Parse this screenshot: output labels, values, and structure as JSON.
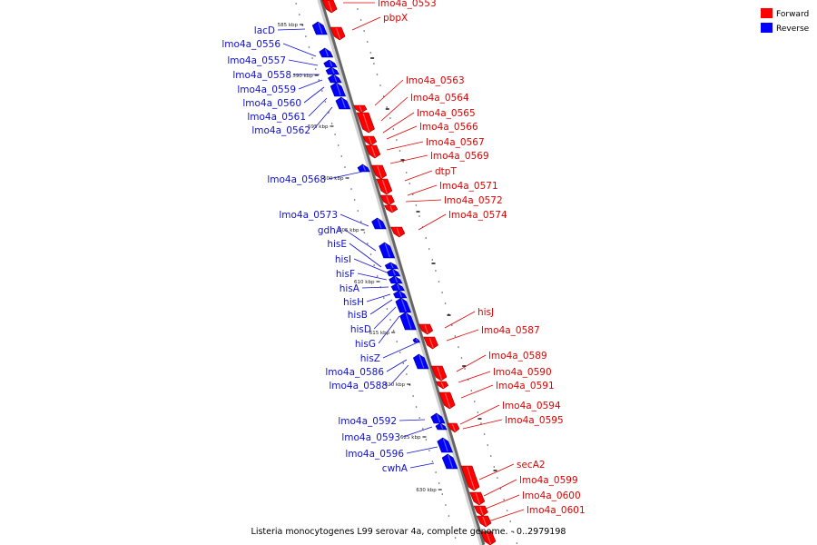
{
  "caption": "Listeria monocytogenes L99 serovar 4a, complete genome. - 0..2979198",
  "legend": [
    {
      "label": "Forward",
      "color": "#ff0000"
    },
    {
      "label": "Reverse",
      "color": "#0000ff"
    }
  ],
  "colors": {
    "forward": "#ff0000",
    "reverse": "#0000ff",
    "forward_label": "#e00000",
    "reverse_label": "#1010d0",
    "backbone": "#999999"
  },
  "ticks": [
    {
      "label": "585 kbp"
    },
    {
      "label": "590 kbp"
    },
    {
      "label": "595 kbp"
    },
    {
      "label": "600 kbp"
    },
    {
      "label": "605 kbp"
    },
    {
      "label": "610 kbp"
    },
    {
      "label": "615 kbp"
    },
    {
      "label": "620 kbp"
    },
    {
      "label": "625 kbp"
    },
    {
      "label": "630 kbp"
    }
  ],
  "forward_genes": [
    {
      "name": "lmo4a_0553"
    },
    {
      "name": "pbpX"
    },
    {
      "name": "lmo4a_0563"
    },
    {
      "name": "lmo4a_0564"
    },
    {
      "name": "lmo4a_0565"
    },
    {
      "name": "lmo4a_0566"
    },
    {
      "name": "lmo4a_0567"
    },
    {
      "name": "lmo4a_0569"
    },
    {
      "name": "dtpT"
    },
    {
      "name": "lmo4a_0571"
    },
    {
      "name": "lmo4a_0572"
    },
    {
      "name": "lmo4a_0574"
    },
    {
      "name": "hisJ"
    },
    {
      "name": "lmo4a_0587"
    },
    {
      "name": "lmo4a_0589"
    },
    {
      "name": "lmo4a_0590"
    },
    {
      "name": "lmo4a_0591"
    },
    {
      "name": "lmo4a_0594"
    },
    {
      "name": "lmo4a_0595"
    },
    {
      "name": "secA2"
    },
    {
      "name": "lmo4a_0599"
    },
    {
      "name": "lmo4a_0600"
    },
    {
      "name": "lmo4a_0601"
    }
  ],
  "reverse_genes": [
    {
      "name": "lacD"
    },
    {
      "name": "lmo4a_0556"
    },
    {
      "name": "lmo4a_0557"
    },
    {
      "name": "lmo4a_0558"
    },
    {
      "name": "lmo4a_0559"
    },
    {
      "name": "lmo4a_0560"
    },
    {
      "name": "lmo4a_0561"
    },
    {
      "name": "lmo4a_0562"
    },
    {
      "name": "lmo4a_0568"
    },
    {
      "name": "lmo4a_0573"
    },
    {
      "name": "gdhA"
    },
    {
      "name": "hisE"
    },
    {
      "name": "hisI"
    },
    {
      "name": "hisF"
    },
    {
      "name": "hisA"
    },
    {
      "name": "hisH"
    },
    {
      "name": "hisB"
    },
    {
      "name": "hisD"
    },
    {
      "name": "hisG"
    },
    {
      "name": "hisZ"
    },
    {
      "name": "lmo4a_0586"
    },
    {
      "name": "lmo4a_0588"
    },
    {
      "name": "lmo4a_0592"
    },
    {
      "name": "lmo4a_0593"
    },
    {
      "name": "lmo4a_0596"
    },
    {
      "name": "cwhA"
    }
  ]
}
